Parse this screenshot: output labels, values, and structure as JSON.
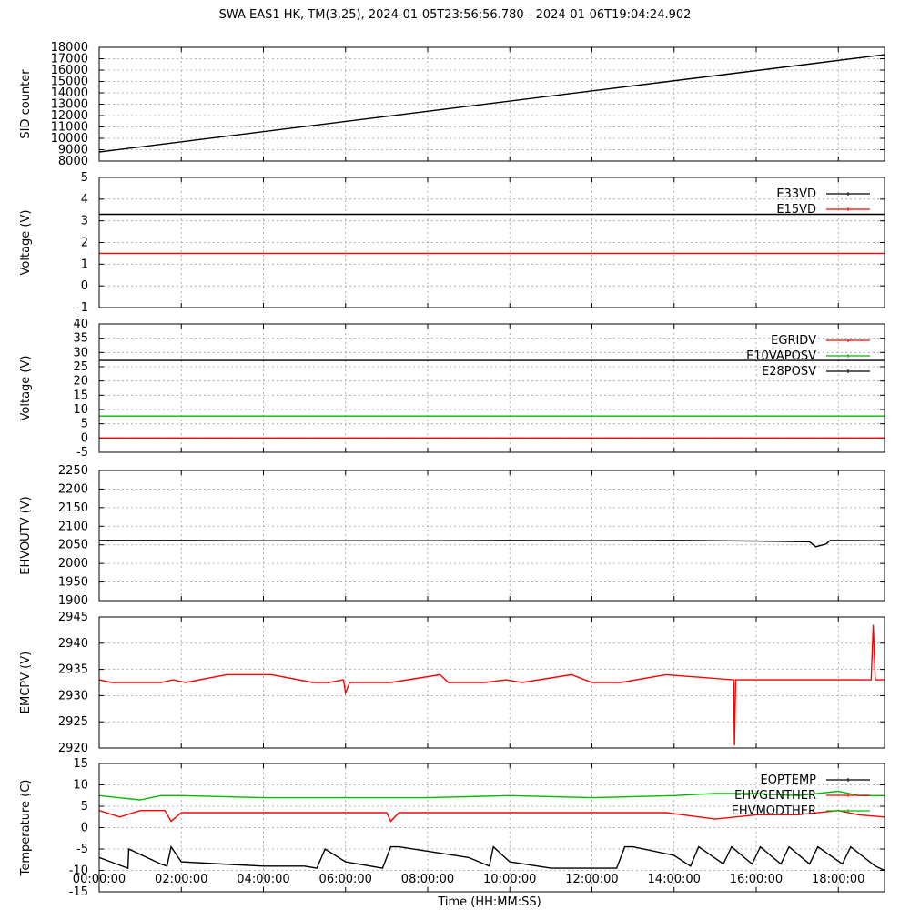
{
  "title": "SWA EAS1 HK, TM(3,25),  2024-01-05T23:56:56.780 - 2024-01-06T19:04:24.902",
  "chart_data": [
    {
      "type": "line",
      "ylabel": "SID counter",
      "ylim": [
        8000,
        18000
      ],
      "yticks": [
        8000,
        9000,
        10000,
        11000,
        12000,
        13000,
        14000,
        15000,
        16000,
        17000,
        18000
      ],
      "grid": true,
      "series": [
        {
          "color": "#000000",
          "x": [
            0,
            19.125
          ],
          "y": [
            8800,
            17350
          ]
        }
      ]
    },
    {
      "type": "line",
      "ylabel": "Voltage (V)",
      "ylim": [
        -1,
        5
      ],
      "yticks": [
        -1,
        0,
        1,
        2,
        3,
        4,
        5
      ],
      "legend": "top-right",
      "grid": true,
      "series": [
        {
          "name": "E33VD",
          "color": "#000000",
          "x": [
            0,
            19.125
          ],
          "y": [
            3.3,
            3.3
          ]
        },
        {
          "name": "E15VD",
          "color": "#ff0000",
          "x": [
            0,
            19.125
          ],
          "y": [
            1.5,
            1.5
          ]
        }
      ]
    },
    {
      "type": "line",
      "ylabel": "Voltage (V)",
      "ylim": [
        -5,
        40
      ],
      "yticks": [
        -5,
        0,
        5,
        10,
        15,
        20,
        25,
        30,
        35,
        40
      ],
      "legend": "top-right",
      "grid": true,
      "series": [
        {
          "name": "EGRIDV",
          "color": "#ff0000",
          "x": [
            0,
            19.125
          ],
          "y": [
            0,
            0
          ]
        },
        {
          "name": "E10VAPOSV",
          "color": "#00bb00",
          "x": [
            0,
            19.125
          ],
          "y": [
            7.7,
            7.7
          ]
        },
        {
          "name": "E28POSV",
          "color": "#000000",
          "x": [
            0,
            19.125
          ],
          "y": [
            27.2,
            27.2
          ]
        }
      ]
    },
    {
      "type": "line",
      "ylabel": "EHVOUTV (V)",
      "ylim": [
        1900,
        2250
      ],
      "yticks": [
        1900,
        1950,
        2000,
        2050,
        2100,
        2150,
        2200,
        2250
      ],
      "grid": true,
      "series": [
        {
          "color": "#000000",
          "x": [
            0,
            2,
            4,
            6,
            8,
            10,
            12,
            14,
            16,
            17.3,
            17.45,
            17.7,
            17.8,
            19.125
          ],
          "y": [
            2062,
            2062,
            2061,
            2061,
            2061,
            2062,
            2061,
            2062,
            2060,
            2058,
            2045,
            2052,
            2062,
            2061
          ]
        }
      ]
    },
    {
      "type": "line",
      "ylabel": "EMCPV (V)",
      "ylim": [
        2920,
        2945
      ],
      "yticks": [
        2920,
        2925,
        2930,
        2935,
        2940,
        2945
      ],
      "grid": true,
      "series": [
        {
          "color": "#ff0000",
          "x": [
            0,
            0.3,
            0.6,
            1.5,
            1.8,
            2.1,
            3.1,
            4.2,
            5.2,
            5.6,
            5.95,
            6.0,
            6.1,
            7.1,
            8.3,
            8.5,
            9.4,
            9.9,
            10.3,
            11.5,
            12.0,
            12.7,
            13.8,
            15.45,
            15.47,
            15.5,
            18.8,
            18.85,
            18.9,
            19.125
          ],
          "y": [
            2933,
            2932.5,
            2932.5,
            2932.5,
            2933,
            2932.5,
            2934,
            2934,
            2932.5,
            2932.5,
            2933,
            2930.5,
            2932.5,
            2932.5,
            2934,
            2932.5,
            2932.5,
            2933,
            2932.5,
            2934,
            2932.5,
            2932.5,
            2934,
            2933,
            2920.5,
            2933,
            2933,
            2943.5,
            2933,
            2933
          ]
        }
      ]
    },
    {
      "type": "line",
      "ylabel": "Temperature (C)",
      "ylim": [
        -15,
        15
      ],
      "yticks": [
        -15,
        -10,
        -5,
        0,
        5,
        10,
        15
      ],
      "legend": "top-right",
      "grid": true,
      "series": [
        {
          "name": "EOPTEMP",
          "color": "#000000",
          "x": [
            0,
            0.7,
            0.72,
            1.5,
            1.65,
            1.75,
            2.0,
            3.0,
            4.0,
            5.0,
            5.3,
            5.5,
            6.0,
            6.9,
            7.1,
            7.3,
            8.0,
            9.0,
            9.5,
            9.6,
            10.0,
            11.0,
            12.0,
            12.6,
            12.8,
            13.0,
            14.0,
            14.4,
            14.6,
            15.2,
            15.4,
            15.9,
            16.1,
            16.6,
            16.8,
            17.3,
            17.5,
            18.1,
            18.3,
            18.9,
            19.125
          ],
          "y": [
            -7,
            -9.5,
            -5,
            -8.5,
            -9,
            -4.5,
            -8,
            -8.5,
            -9,
            -9,
            -9.5,
            -5,
            -8,
            -9.5,
            -4.5,
            -4.5,
            -5.5,
            -7,
            -9,
            -4.5,
            -8,
            -9.5,
            -9.5,
            -9.5,
            -4.5,
            -4.5,
            -6.5,
            -9,
            -4.5,
            -8.5,
            -4.5,
            -8.5,
            -4.5,
            -8.5,
            -4.5,
            -8.5,
            -4.5,
            -8.5,
            -4.5,
            -9,
            -10
          ]
        },
        {
          "name": "EHVGENTHER",
          "color": "#ff0000",
          "x": [
            0,
            0.5,
            1.0,
            1.6,
            1.75,
            2.0,
            6.0,
            7.0,
            7.1,
            7.3,
            10.0,
            13.8,
            15.0,
            16.0,
            17.0,
            18.0,
            18.5,
            19.125
          ],
          "y": [
            4,
            2.5,
            4,
            4,
            1.5,
            3.5,
            3.5,
            3.5,
            1.5,
            3.5,
            3.5,
            3.5,
            2,
            3,
            3,
            4,
            3,
            2.5
          ]
        },
        {
          "name": "EHVMODTHER",
          "color": "#00bb00",
          "x": [
            0,
            1.0,
            1.5,
            2.0,
            4.0,
            6.0,
            8.0,
            10.0,
            12.0,
            14.0,
            15.0,
            16.0,
            17.0,
            18.0,
            18.5,
            19.125
          ],
          "y": [
            7.5,
            6.5,
            7.5,
            7.5,
            7,
            7,
            7,
            7.5,
            7,
            7.5,
            8,
            8,
            7.5,
            8.5,
            7.5,
            7.5
          ]
        }
      ]
    }
  ],
  "x_axis": {
    "label": "Time (HH:MM:SS)",
    "xlim": [
      0,
      19.125
    ],
    "ticks": [
      0,
      2,
      4,
      6,
      8,
      10,
      12,
      14,
      16,
      18
    ],
    "tick_labels": [
      "00:00:00",
      "02:00:00",
      "04:00:00",
      "06:00:00",
      "08:00:00",
      "10:00:00",
      "12:00:00",
      "14:00:00",
      "16:00:00",
      "18:00:00"
    ]
  }
}
